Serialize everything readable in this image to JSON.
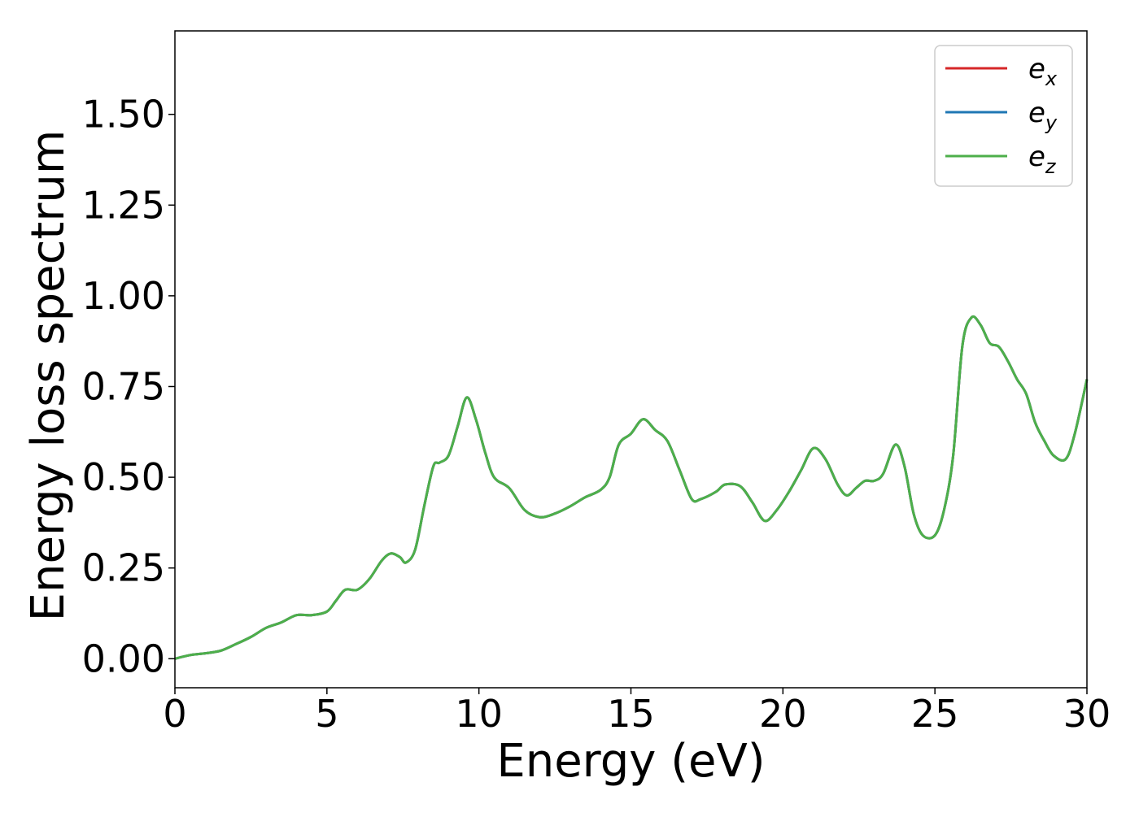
{
  "chart_data": {
    "type": "line",
    "title": "",
    "xlabel": "Energy (eV)",
    "ylabel": "Energy loss spectrum",
    "xlim": [
      0,
      30
    ],
    "ylim": [
      -0.08,
      1.73
    ],
    "xticks": [
      0,
      5,
      10,
      15,
      20,
      25,
      30
    ],
    "xtick_labels": [
      "0",
      "5",
      "10",
      "15",
      "20",
      "25",
      "30"
    ],
    "yticks": [
      0.0,
      0.25,
      0.5,
      0.75,
      1.0,
      1.25,
      1.5
    ],
    "ytick_labels": [
      "0.00",
      "0.25",
      "0.50",
      "0.75",
      "1.00",
      "1.25",
      "1.50"
    ],
    "grid": false,
    "legend_position": "top-right",
    "x": [
      0,
      0.5,
      1,
      1.5,
      2,
      2.5,
      3,
      3.5,
      4,
      4.5,
      5,
      5.3,
      5.6,
      6,
      6.4,
      6.8,
      7.1,
      7.4,
      7.6,
      7.9,
      8.2,
      8.5,
      8.7,
      9,
      9.3,
      9.6,
      9.9,
      10.2,
      10.5,
      11,
      11.5,
      12,
      12.5,
      13,
      13.5,
      14,
      14.3,
      14.6,
      15,
      15.4,
      15.8,
      16.2,
      16.6,
      17,
      17.3,
      17.8,
      18.1,
      18.6,
      19,
      19.4,
      19.8,
      20.2,
      20.6,
      21,
      21.4,
      21.8,
      22.1,
      22.4,
      22.7,
      23,
      23.3,
      23.7,
      24,
      24.3,
      24.6,
      25,
      25.3,
      25.6,
      25.9,
      26.2,
      26.5,
      26.8,
      27.1,
      27.4,
      27.7,
      28,
      28.3,
      28.6,
      28.9,
      29.3,
      29.6,
      30
    ],
    "series": [
      {
        "name": "e_x",
        "color": "#d62728",
        "values": [
          0.0,
          0.01,
          0.015,
          0.022,
          0.04,
          0.06,
          0.085,
          0.1,
          0.12,
          0.12,
          0.13,
          0.16,
          0.19,
          0.19,
          0.22,
          0.27,
          0.29,
          0.28,
          0.265,
          0.3,
          0.42,
          0.53,
          0.54,
          0.56,
          0.64,
          0.72,
          0.66,
          0.57,
          0.5,
          0.47,
          0.41,
          0.39,
          0.4,
          0.42,
          0.445,
          0.465,
          0.5,
          0.59,
          0.62,
          0.66,
          0.63,
          0.6,
          0.52,
          0.44,
          0.44,
          0.46,
          0.48,
          0.475,
          0.43,
          0.38,
          0.41,
          0.46,
          0.52,
          0.58,
          0.55,
          0.48,
          0.45,
          0.47,
          0.49,
          0.49,
          0.51,
          0.59,
          0.53,
          0.4,
          0.34,
          0.34,
          0.41,
          0.56,
          0.86,
          0.94,
          0.92,
          0.87,
          0.86,
          0.82,
          0.77,
          0.73,
          0.65,
          0.6,
          0.56,
          0.55,
          0.62,
          0.77
        ]
      },
      {
        "name": "e_y",
        "color": "#1f77b4",
        "values": [
          0.0,
          0.01,
          0.015,
          0.022,
          0.04,
          0.06,
          0.085,
          0.1,
          0.12,
          0.12,
          0.13,
          0.16,
          0.19,
          0.19,
          0.22,
          0.27,
          0.29,
          0.28,
          0.265,
          0.3,
          0.42,
          0.53,
          0.54,
          0.56,
          0.64,
          0.72,
          0.66,
          0.57,
          0.5,
          0.47,
          0.41,
          0.39,
          0.4,
          0.42,
          0.445,
          0.465,
          0.5,
          0.59,
          0.62,
          0.66,
          0.63,
          0.6,
          0.52,
          0.44,
          0.44,
          0.46,
          0.48,
          0.475,
          0.43,
          0.38,
          0.41,
          0.46,
          0.52,
          0.58,
          0.55,
          0.48,
          0.45,
          0.47,
          0.49,
          0.49,
          0.51,
          0.59,
          0.53,
          0.4,
          0.34,
          0.34,
          0.41,
          0.56,
          0.86,
          0.94,
          0.92,
          0.87,
          0.86,
          0.82,
          0.77,
          0.73,
          0.65,
          0.6,
          0.56,
          0.55,
          0.62,
          0.77
        ]
      },
      {
        "name": "e_z",
        "color": "#4daf4a",
        "values": [
          0.0,
          0.01,
          0.015,
          0.022,
          0.04,
          0.06,
          0.085,
          0.1,
          0.12,
          0.12,
          0.13,
          0.16,
          0.19,
          0.19,
          0.22,
          0.27,
          0.29,
          0.28,
          0.265,
          0.3,
          0.42,
          0.53,
          0.54,
          0.56,
          0.64,
          0.72,
          0.66,
          0.57,
          0.5,
          0.47,
          0.41,
          0.39,
          0.4,
          0.42,
          0.445,
          0.465,
          0.5,
          0.59,
          0.62,
          0.66,
          0.63,
          0.6,
          0.52,
          0.44,
          0.44,
          0.46,
          0.48,
          0.475,
          0.43,
          0.38,
          0.41,
          0.46,
          0.52,
          0.58,
          0.55,
          0.48,
          0.45,
          0.47,
          0.49,
          0.49,
          0.51,
          0.59,
          0.53,
          0.4,
          0.34,
          0.34,
          0.41,
          0.56,
          0.86,
          0.94,
          0.92,
          0.87,
          0.86,
          0.82,
          0.77,
          0.73,
          0.65,
          0.6,
          0.56,
          0.55,
          0.62,
          0.77
        ]
      }
    ],
    "legend": [
      {
        "base": "e",
        "sub": "x",
        "color": "#d62728"
      },
      {
        "base": "e",
        "sub": "y",
        "color": "#1f77b4"
      },
      {
        "base": "e",
        "sub": "z",
        "color": "#4daf4a"
      }
    ]
  }
}
